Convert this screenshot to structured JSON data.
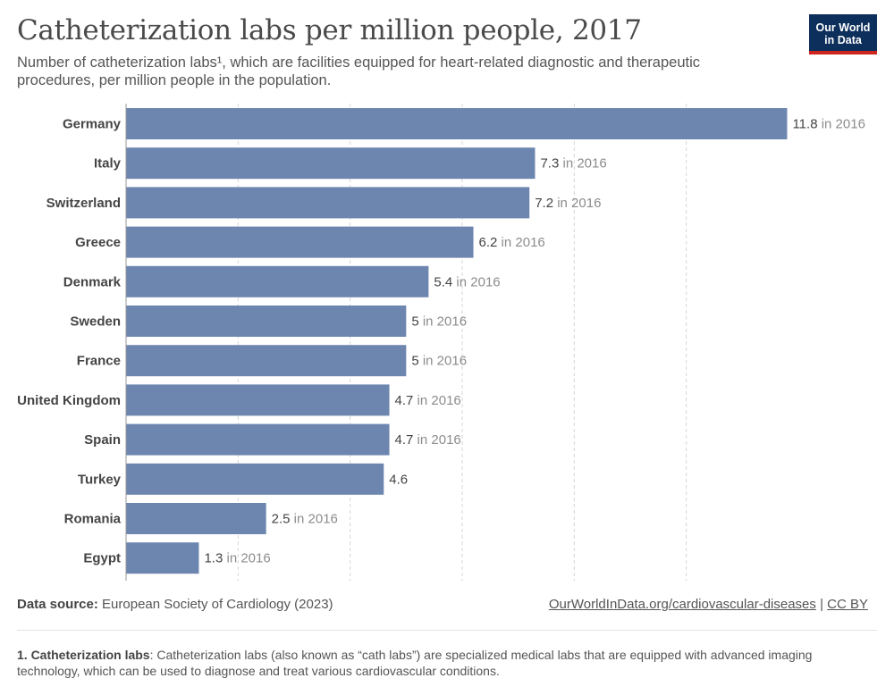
{
  "header": {
    "title": "Catheterization labs per million people, 2017",
    "subtitle": "Number of catheterization labs¹, which are facilities equipped for heart-related diagnostic and therapeutic procedures, per million people in the population.",
    "logo_line1": "Our World",
    "logo_line2": "in Data"
  },
  "footer": {
    "source_label": "Data source:",
    "source_text": "European Society of Cardiology (2023)",
    "link_text": "OurWorldInData.org/cardiovascular-diseases",
    "separator": "|",
    "license": "CC BY",
    "footnote_label": "1. Catheterization labs",
    "footnote_text": ": Catheterization labs (also known as “cath labs”) are specialized medical labs that are equipped with advanced imaging technology, which can be used to diagnose and treat various cardiovascular conditions."
  },
  "colors": {
    "bar": "#6d86b0",
    "value_text": "#444444",
    "year_note_text": "#8c8c8c",
    "grid": "#d6d6d6"
  },
  "chart_data": {
    "type": "bar",
    "orientation": "horizontal",
    "categories": [
      "Germany",
      "Italy",
      "Switzerland",
      "Greece",
      "Denmark",
      "Sweden",
      "France",
      "United Kingdom",
      "Spain",
      "Turkey",
      "Romania",
      "Egypt"
    ],
    "values": [
      11.8,
      7.3,
      7.2,
      6.2,
      5.4,
      5,
      5,
      4.7,
      4.7,
      4.6,
      2.5,
      1.3
    ],
    "year_notes": [
      "in 2016",
      "in 2016",
      "in 2016",
      "in 2016",
      "in 2016",
      "in 2016",
      "in 2016",
      "in 2016",
      "in 2016",
      "",
      "in 2016",
      "in 2016"
    ],
    "xlim": [
      0,
      12
    ],
    "grid": true,
    "grid_step": 2
  }
}
